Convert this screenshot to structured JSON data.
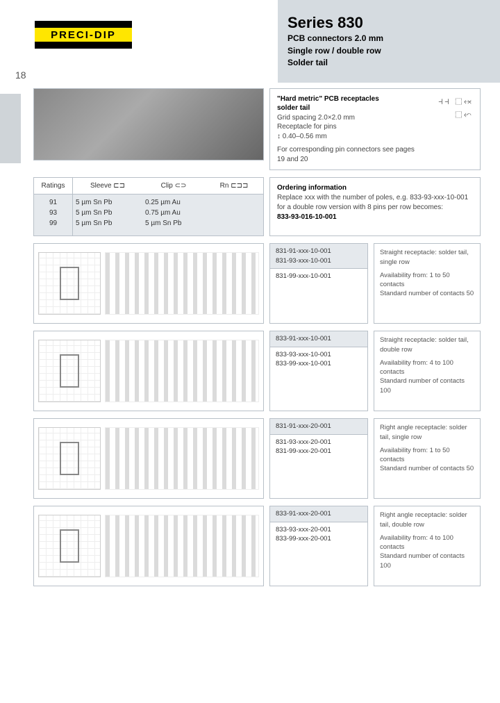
{
  "brand": "PRECI-DIP",
  "page_number": "18",
  "title": {
    "main": "Series 830",
    "line1": "PCB connectors 2.0 mm",
    "line2": "Single row / double row",
    "line3": "Solder tail"
  },
  "intro": {
    "bold1": "\"Hard metric\" PCB receptacles",
    "bold2": "solder tail",
    "l1": "Grid spacing 2.0×2.0 mm",
    "l2": "Receptacle for pins",
    "l3": "↕ 0.40–0.56 mm",
    "l4": "For corresponding pin connectors see pages 19 and 20"
  },
  "ratings": {
    "head": {
      "ratings": "Ratings",
      "sleeve": "Sleeve ⊏⊐",
      "clip": "Clip ⊂⊃",
      "rn": "Rn ⊏⊐⊐"
    },
    "rows": {
      "ratings": "91\n93\n99",
      "sleeve": "5 µm Sn Pb\n5 µm Sn Pb\n5 µm Sn Pb",
      "clip": "0.25 µm Au\n0.75 µm Au\n5 µm Sn Pb",
      "rn": ""
    }
  },
  "ordering": {
    "title": "Ordering information",
    "l1": "Replace xxx with the number of poles, e.g. 833-93-xxx-10-001",
    "l2": "for a double row version with 8 pins per row becomes:",
    "l3": "833-93-016-10-001"
  },
  "products": [
    {
      "parts_highlight": "831-91-xxx-10-001\n831-93-xxx-10-001",
      "parts_rest": "831-99-xxx-10-001",
      "desc": "Straight receptacle: solder tail, single row",
      "avail": "Availability from: 1 to 50 contacts\nStandard number of contacts 50"
    },
    {
      "parts_highlight": "833-91-xxx-10-001",
      "parts_rest": "833-93-xxx-10-001\n833-99-xxx-10-001",
      "desc": "Straight receptacle: solder tail, double row",
      "avail": "Availability from: 4 to 100 contacts\nStandard number of contacts 100"
    },
    {
      "parts_highlight": "831-91-xxx-20-001",
      "parts_rest": "831-93-xxx-20-001\n831-99-xxx-20-001",
      "desc": "Right angle receptacle: solder tail, single row",
      "avail": "Availability from: 1 to 50 contacts\nStandard number of contacts 50"
    },
    {
      "parts_highlight": "833-91-xxx-20-001",
      "parts_rest": "833-93-xxx-20-001\n833-99-xxx-20-001",
      "desc": "Right angle receptacle: solder tail, double row",
      "avail": "Availability from: 4 to 100 contacts\nStandard number of contacts 100"
    }
  ],
  "colors": {
    "panel_gray": "#d5dbe0",
    "cell_gray": "#e5e9ed",
    "border": "#b8c0c8",
    "brand_yellow": "#ffe600"
  }
}
